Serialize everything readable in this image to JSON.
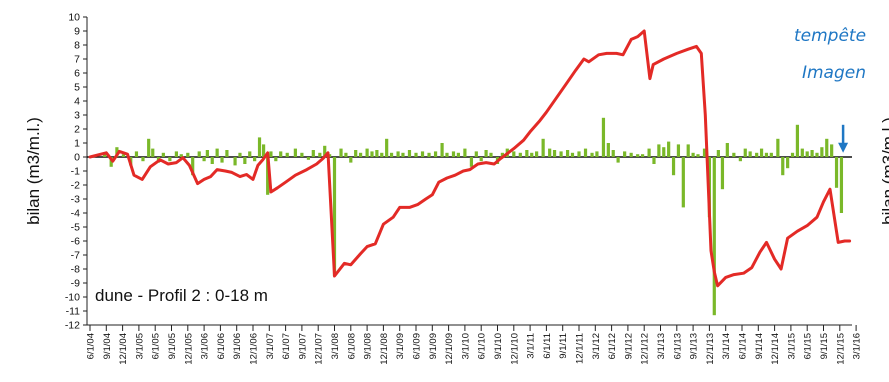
{
  "chart_data": {
    "type": "line",
    "ylabel": "bilan (m3/m.l.)",
    "clipped_ylabel": "bilan (m3/m.l.)",
    "inset_label": "dune - Profil 2 : 0-18 m",
    "annotation": {
      "lines": [
        "tempête",
        "Imagen"
      ],
      "x_index": 47,
      "arrow_from": 2.3,
      "arrow_to": 0.3
    },
    "ylim": [
      -12,
      10
    ],
    "y_ticks": [
      10,
      9,
      8,
      7,
      6,
      5,
      4,
      3,
      2,
      1,
      0,
      -1,
      -2,
      -3,
      -4,
      -5,
      -6,
      -7,
      -8,
      -9,
      -10,
      -11,
      -12
    ],
    "y_tick_labels": [
      "10",
      "9",
      "8",
      "7",
      "6",
      "5",
      "4",
      "3",
      "2",
      "1",
      "0",
      "-1",
      "-2",
      "-3",
      "-4",
      "-5",
      "-6",
      "-7",
      "-8",
      "-9",
      "-10",
      "-11",
      "-12"
    ],
    "x_tick_labels": [
      "6/1/04",
      "9/1/04",
      "12/1/04",
      "3/1/05",
      "6/1/05",
      "9/1/05",
      "12/1/05",
      "3/1/06",
      "6/1/06",
      "9/1/06",
      "12/1/06",
      "3/1/07",
      "6/1/07",
      "9/1/07",
      "12/1/07",
      "3/1/08",
      "6/1/08",
      "9/1/08",
      "12/1/08",
      "3/1/09",
      "6/1/09",
      "9/1/09",
      "12/1/09",
      "3/1/10",
      "6/1/10",
      "9/1/10",
      "12/1/10",
      "3/1/11",
      "6/1/11",
      "9/1/11",
      "12/1/11",
      "3/1/12",
      "6/1/12",
      "9/1/12",
      "12/1/12",
      "3/1/13",
      "6/1/13",
      "9/1/13",
      "12/1/13",
      "3/1/14",
      "6/1/14",
      "9/1/14",
      "12/1/14",
      "3/1/15",
      "6/1/15",
      "9/1/15",
      "12/1/15",
      "3/1/16"
    ],
    "series": [
      {
        "kind": "line",
        "color": "#e32a26",
        "points": [
          [
            0,
            0
          ],
          [
            1.0,
            0.3
          ],
          [
            1.4,
            -0.3
          ],
          [
            1.8,
            0.4
          ],
          [
            2.3,
            0.2
          ],
          [
            2.7,
            -1.3
          ],
          [
            3.2,
            -1.6
          ],
          [
            3.7,
            -0.7
          ],
          [
            4.3,
            -0.2
          ],
          [
            4.8,
            -0.5
          ],
          [
            5.3,
            -0.4
          ],
          [
            5.7,
            -0.05
          ],
          [
            6.1,
            -0.6
          ],
          [
            6.6,
            -1.9
          ],
          [
            7.0,
            -1.6
          ],
          [
            7.4,
            -1.4
          ],
          [
            7.8,
            -0.9
          ],
          [
            8.3,
            -1.0
          ],
          [
            8.7,
            -1.1
          ],
          [
            9.2,
            -1.4
          ],
          [
            9.6,
            -1.25
          ],
          [
            10.0,
            -1.6
          ],
          [
            10.3,
            -0.6
          ],
          [
            10.6,
            -0.2
          ],
          [
            10.9,
            0.3
          ],
          [
            11.1,
            -2.5
          ],
          [
            11.5,
            -2.2
          ],
          [
            12.0,
            -1.8
          ],
          [
            12.6,
            -1.3
          ],
          [
            13.3,
            -0.9
          ],
          [
            13.9,
            -0.5
          ],
          [
            14.3,
            -0.1
          ],
          [
            14.6,
            0.3
          ],
          [
            15.0,
            -8.5
          ],
          [
            15.6,
            -7.6
          ],
          [
            16.0,
            -7.7
          ],
          [
            16.6,
            -6.9
          ],
          [
            17.0,
            -6.4
          ],
          [
            17.5,
            -6.2
          ],
          [
            18.0,
            -4.8
          ],
          [
            18.6,
            -4.3
          ],
          [
            19.0,
            -3.6
          ],
          [
            19.6,
            -3.6
          ],
          [
            20.1,
            -3.4
          ],
          [
            20.6,
            -3.0
          ],
          [
            21.0,
            -2.7
          ],
          [
            21.4,
            -1.8
          ],
          [
            21.9,
            -1.5
          ],
          [
            22.4,
            -1.3
          ],
          [
            22.9,
            -1.0
          ],
          [
            23.3,
            -0.9
          ],
          [
            23.8,
            -0.5
          ],
          [
            24.3,
            -0.4
          ],
          [
            24.8,
            -0.5
          ],
          [
            25.2,
            -0.1
          ],
          [
            26.0,
            0.6
          ],
          [
            26.6,
            1.2
          ],
          [
            27.0,
            1.8
          ],
          [
            27.6,
            2.6
          ],
          [
            28.0,
            3.2
          ],
          [
            28.6,
            4.2
          ],
          [
            29.2,
            5.2
          ],
          [
            29.8,
            6.2
          ],
          [
            30.3,
            7.0
          ],
          [
            30.6,
            6.8
          ],
          [
            31.2,
            7.3
          ],
          [
            31.7,
            7.4
          ],
          [
            32.3,
            7.4
          ],
          [
            32.7,
            7.3
          ],
          [
            33.2,
            8.4
          ],
          [
            33.6,
            8.6
          ],
          [
            34.0,
            9.0
          ],
          [
            34.35,
            5.6
          ],
          [
            34.55,
            6.6
          ],
          [
            35.2,
            7.0
          ],
          [
            36.0,
            7.4
          ],
          [
            36.7,
            7.7
          ],
          [
            37.2,
            7.9
          ],
          [
            37.5,
            7.4
          ],
          [
            37.75,
            3.0
          ],
          [
            38.1,
            -6.7
          ],
          [
            38.3,
            -8.2
          ],
          [
            38.5,
            -9.2
          ],
          [
            39.0,
            -8.6
          ],
          [
            39.5,
            -8.4
          ],
          [
            40.1,
            -8.3
          ],
          [
            40.6,
            -7.9
          ],
          [
            41.1,
            -6.8
          ],
          [
            41.5,
            -6.1
          ],
          [
            42.0,
            -7.3
          ],
          [
            42.4,
            -8.0
          ],
          [
            42.8,
            -5.8
          ],
          [
            43.4,
            -5.3
          ],
          [
            44.0,
            -4.9
          ],
          [
            44.6,
            -4.3
          ],
          [
            45.0,
            -3.2
          ],
          [
            45.4,
            -2.3
          ],
          [
            45.9,
            -6.1
          ],
          [
            46.3,
            -6.0
          ],
          [
            46.6,
            -6.0
          ]
        ]
      },
      {
        "kind": "bars",
        "color": "#7ab829",
        "points": [
          [
            0.9,
            0.3
          ],
          [
            1.3,
            -0.7
          ],
          [
            1.65,
            0.7
          ],
          [
            2.05,
            0.2
          ],
          [
            2.5,
            -0.6
          ],
          [
            2.85,
            0.4
          ],
          [
            3.25,
            -0.3
          ],
          [
            3.6,
            1.3
          ],
          [
            3.85,
            0.6
          ],
          [
            4.2,
            -0.4
          ],
          [
            4.5,
            0.3
          ],
          [
            4.9,
            -0.3
          ],
          [
            5.3,
            0.4
          ],
          [
            5.6,
            0.2
          ],
          [
            6.0,
            0.3
          ],
          [
            6.3,
            -1.3
          ],
          [
            6.7,
            0.4
          ],
          [
            7.0,
            -0.3
          ],
          [
            7.2,
            0.5
          ],
          [
            7.5,
            -0.5
          ],
          [
            7.8,
            0.6
          ],
          [
            8.1,
            -0.4
          ],
          [
            8.4,
            0.5
          ],
          [
            8.9,
            -0.6
          ],
          [
            9.2,
            0.3
          ],
          [
            9.5,
            -0.5
          ],
          [
            9.8,
            0.4
          ],
          [
            10.1,
            -0.3
          ],
          [
            10.4,
            1.4
          ],
          [
            10.65,
            0.9
          ],
          [
            10.9,
            -2.7
          ],
          [
            11.1,
            0.4
          ],
          [
            11.4,
            -0.3
          ],
          [
            11.7,
            0.4
          ],
          [
            12.1,
            0.3
          ],
          [
            12.6,
            0.6
          ],
          [
            13.0,
            0.3
          ],
          [
            13.4,
            -0.2
          ],
          [
            13.7,
            0.5
          ],
          [
            14.1,
            0.3
          ],
          [
            14.4,
            0.8
          ],
          [
            14.7,
            0.2
          ],
          [
            15.0,
            -8.5
          ],
          [
            15.4,
            0.6
          ],
          [
            15.7,
            0.3
          ],
          [
            16.0,
            -0.4
          ],
          [
            16.3,
            0.5
          ],
          [
            16.6,
            0.3
          ],
          [
            17.0,
            0.6
          ],
          [
            17.3,
            0.4
          ],
          [
            17.6,
            0.5
          ],
          [
            17.9,
            0.3
          ],
          [
            18.2,
            1.3
          ],
          [
            18.5,
            0.3
          ],
          [
            18.9,
            0.4
          ],
          [
            19.2,
            0.3
          ],
          [
            19.6,
            0.5
          ],
          [
            20.0,
            0.3
          ],
          [
            20.4,
            0.4
          ],
          [
            20.8,
            0.3
          ],
          [
            21.2,
            0.4
          ],
          [
            21.6,
            1.0
          ],
          [
            21.9,
            0.3
          ],
          [
            22.3,
            0.4
          ],
          [
            22.6,
            0.3
          ],
          [
            23.0,
            0.6
          ],
          [
            23.4,
            -0.7
          ],
          [
            23.7,
            0.4
          ],
          [
            24.0,
            -0.3
          ],
          [
            24.3,
            0.5
          ],
          [
            24.6,
            0.3
          ],
          [
            25.0,
            -0.5
          ],
          [
            25.3,
            0.3
          ],
          [
            25.6,
            0.6
          ],
          [
            26.0,
            0.4
          ],
          [
            26.4,
            0.3
          ],
          [
            26.8,
            0.5
          ],
          [
            27.1,
            0.3
          ],
          [
            27.4,
            0.4
          ],
          [
            27.8,
            1.3
          ],
          [
            28.2,
            0.6
          ],
          [
            28.5,
            0.5
          ],
          [
            28.9,
            0.4
          ],
          [
            29.3,
            0.5
          ],
          [
            29.6,
            0.3
          ],
          [
            30.0,
            0.4
          ],
          [
            30.4,
            0.6
          ],
          [
            30.8,
            0.3
          ],
          [
            31.1,
            0.4
          ],
          [
            31.5,
            2.8
          ],
          [
            31.8,
            1.0
          ],
          [
            32.1,
            0.5
          ],
          [
            32.4,
            -0.4
          ],
          [
            32.8,
            0.4
          ],
          [
            33.2,
            0.3
          ],
          [
            33.6,
            0.2
          ],
          [
            33.9,
            0.2
          ],
          [
            34.3,
            0.6
          ],
          [
            34.6,
            -0.5
          ],
          [
            34.9,
            0.9
          ],
          [
            35.2,
            0.7
          ],
          [
            35.5,
            1.1
          ],
          [
            35.8,
            -1.3
          ],
          [
            36.1,
            0.9
          ],
          [
            36.4,
            -3.6
          ],
          [
            36.7,
            0.9
          ],
          [
            37.0,
            0.3
          ],
          [
            37.3,
            0.2
          ],
          [
            37.7,
            0.6
          ],
          [
            38.0,
            -4.3
          ],
          [
            38.3,
            -11.3
          ],
          [
            38.55,
            0.5
          ],
          [
            38.8,
            -2.3
          ],
          [
            39.1,
            1.0
          ],
          [
            39.5,
            0.3
          ],
          [
            39.9,
            -0.3
          ],
          [
            40.2,
            0.6
          ],
          [
            40.5,
            0.4
          ],
          [
            40.9,
            0.3
          ],
          [
            41.2,
            0.6
          ],
          [
            41.5,
            0.3
          ],
          [
            41.8,
            0.3
          ],
          [
            42.2,
            1.3
          ],
          [
            42.5,
            -1.3
          ],
          [
            42.8,
            -0.8
          ],
          [
            43.1,
            0.3
          ],
          [
            43.4,
            2.3
          ],
          [
            43.7,
            0.6
          ],
          [
            44.0,
            0.4
          ],
          [
            44.3,
            0.5
          ],
          [
            44.6,
            0.3
          ],
          [
            44.9,
            0.7
          ],
          [
            45.2,
            1.3
          ],
          [
            45.5,
            0.9
          ],
          [
            45.8,
            -2.2
          ],
          [
            46.1,
            -4.0
          ]
        ]
      }
    ]
  }
}
